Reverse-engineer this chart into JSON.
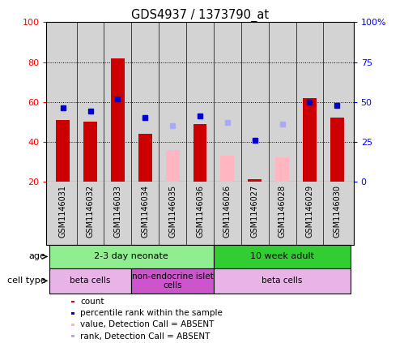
{
  "title": "GDS4937 / 1373790_at",
  "samples": [
    "GSM1146031",
    "GSM1146032",
    "GSM1146033",
    "GSM1146034",
    "GSM1146035",
    "GSM1146036",
    "GSM1146026",
    "GSM1146027",
    "GSM1146028",
    "GSM1146029",
    "GSM1146030"
  ],
  "count_values": [
    51,
    50,
    82,
    44,
    null,
    49,
    null,
    21,
    null,
    62,
    52
  ],
  "count_absent": [
    null,
    null,
    null,
    null,
    36,
    null,
    33,
    null,
    32,
    null,
    null
  ],
  "rank_pct_values": [
    46,
    44,
    52,
    40,
    null,
    41,
    null,
    26,
    null,
    50,
    48
  ],
  "rank_pct_absent": [
    null,
    null,
    null,
    null,
    35,
    null,
    37,
    null,
    36,
    null,
    null
  ],
  "ylim_left": [
    20,
    100
  ],
  "ylim_right": [
    0,
    100
  ],
  "yticks_left": [
    20,
    40,
    60,
    80,
    100
  ],
  "yticks_right": [
    0,
    25,
    50,
    75,
    100
  ],
  "ytick_labels_left": [
    "20",
    "40",
    "60",
    "80",
    "100"
  ],
  "ytick_labels_right": [
    "0",
    "25",
    "50",
    "75",
    "100%"
  ],
  "age_groups": [
    {
      "label": "2-3 day neonate",
      "start": 0,
      "end": 6,
      "color": "#90EE90"
    },
    {
      "label": "10 week adult",
      "start": 6,
      "end": 11,
      "color": "#32CD32"
    }
  ],
  "cell_type_groups": [
    {
      "label": "beta cells",
      "start": 0,
      "end": 3,
      "color": "#E8B4E8"
    },
    {
      "label": "non-endocrine islet\ncells",
      "start": 3,
      "end": 6,
      "color": "#CC55CC"
    },
    {
      "label": "beta cells",
      "start": 6,
      "end": 11,
      "color": "#E8B4E8"
    }
  ],
  "legend_items": [
    {
      "color": "#CC0000",
      "label": "count"
    },
    {
      "color": "#0000CC",
      "label": "percentile rank within the sample"
    },
    {
      "color": "#FFB6C1",
      "label": "value, Detection Call = ABSENT"
    },
    {
      "color": "#AAAAEE",
      "label": "rank, Detection Call = ABSENT"
    }
  ],
  "count_color": "#CC0000",
  "rank_color": "#0000CC",
  "count_absent_color": "#FFB6C1",
  "rank_absent_color": "#AAAAEE",
  "bg_color": "#D3D3D3",
  "bar_width": 0.5
}
